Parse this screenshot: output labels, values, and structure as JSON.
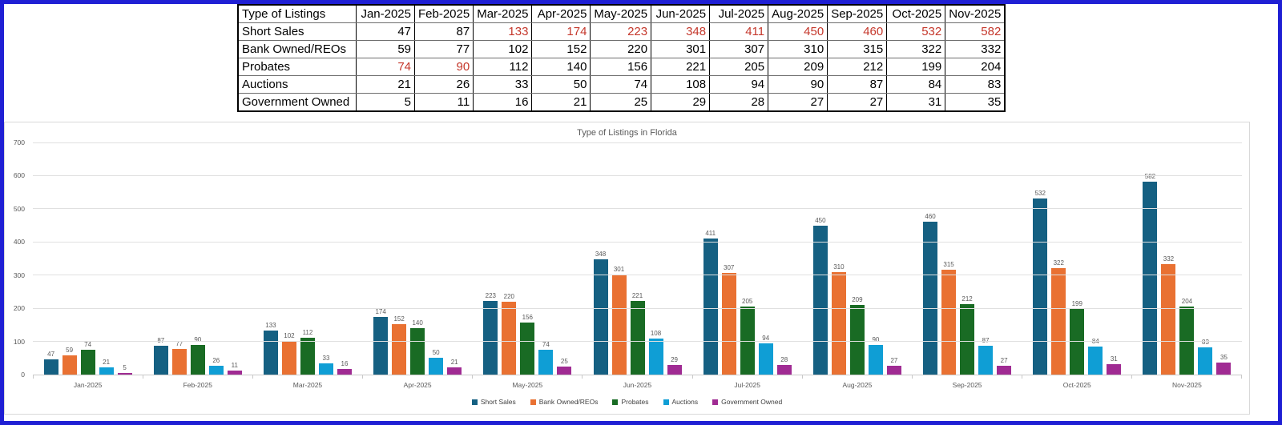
{
  "colors": {
    "page_border": "#1F1FD4",
    "red_text": "#C5372B",
    "grid": "#E0E0E0",
    "axis_text": "#595959",
    "title_text": "#595959"
  },
  "table": {
    "header": [
      "Type of Listings",
      "Jan-2025",
      "Feb-2025",
      "Mar-2025",
      "Apr-2025",
      "May-2025",
      "Jun-2025",
      "Jul-2025",
      "Aug-2025",
      "Sep-2025",
      "Oct-2025",
      "Nov-2025"
    ],
    "rows": [
      {
        "label": "Short Sales",
        "values": [
          47,
          87,
          133,
          174,
          223,
          348,
          411,
          450,
          460,
          532,
          582
        ],
        "red_indices": [
          2,
          3,
          4,
          5,
          6,
          7,
          8,
          9,
          10
        ]
      },
      {
        "label": "Bank Owned/REOs",
        "values": [
          59,
          77,
          102,
          152,
          220,
          301,
          307,
          310,
          315,
          322,
          332
        ],
        "red_indices": []
      },
      {
        "label": "Probates",
        "values": [
          74,
          90,
          112,
          140,
          156,
          221,
          205,
          209,
          212,
          199,
          204
        ],
        "red_indices": [
          0,
          1
        ]
      },
      {
        "label": "Auctions",
        "values": [
          21,
          26,
          33,
          50,
          74,
          108,
          94,
          90,
          87,
          84,
          83
        ],
        "red_indices": []
      },
      {
        "label": "Government Owned",
        "values": [
          5,
          11,
          16,
          21,
          25,
          29,
          28,
          27,
          27,
          31,
          35
        ],
        "red_indices": []
      }
    ]
  },
  "chart_data": {
    "type": "bar",
    "title": "Type of Listings in Florida",
    "categories": [
      "Jan-2025",
      "Feb-2025",
      "Mar-2025",
      "Apr-2025",
      "May-2025",
      "Jun-2025",
      "Jul-2025",
      "Aug-2025",
      "Sep-2025",
      "Oct-2025",
      "Nov-2025"
    ],
    "series": [
      {
        "name": "Short Sales",
        "color": "#156082",
        "values": [
          47,
          87,
          133,
          174,
          223,
          348,
          411,
          450,
          460,
          532,
          582
        ]
      },
      {
        "name": "Bank Owned/REOs",
        "color": "#E97132",
        "values": [
          59,
          77,
          102,
          152,
          220,
          301,
          307,
          310,
          315,
          322,
          332
        ]
      },
      {
        "name": "Probates",
        "color": "#196B24",
        "values": [
          74,
          90,
          112,
          140,
          156,
          221,
          205,
          209,
          212,
          199,
          204
        ]
      },
      {
        "name": "Auctions",
        "color": "#0F9ED5",
        "values": [
          21,
          26,
          33,
          50,
          74,
          108,
          94,
          90,
          87,
          84,
          83
        ]
      },
      {
        "name": "Government Owned",
        "color": "#A02B93",
        "values": [
          5,
          11,
          16,
          21,
          25,
          29,
          28,
          27,
          27,
          31,
          35
        ]
      }
    ],
    "xlabel": "",
    "ylabel": "",
    "ylim": [
      0,
      700
    ],
    "y_ticks": [
      0,
      100,
      200,
      300,
      400,
      500,
      600,
      700
    ],
    "grid": true,
    "legend_position": "bottom",
    "data_labels": true
  }
}
